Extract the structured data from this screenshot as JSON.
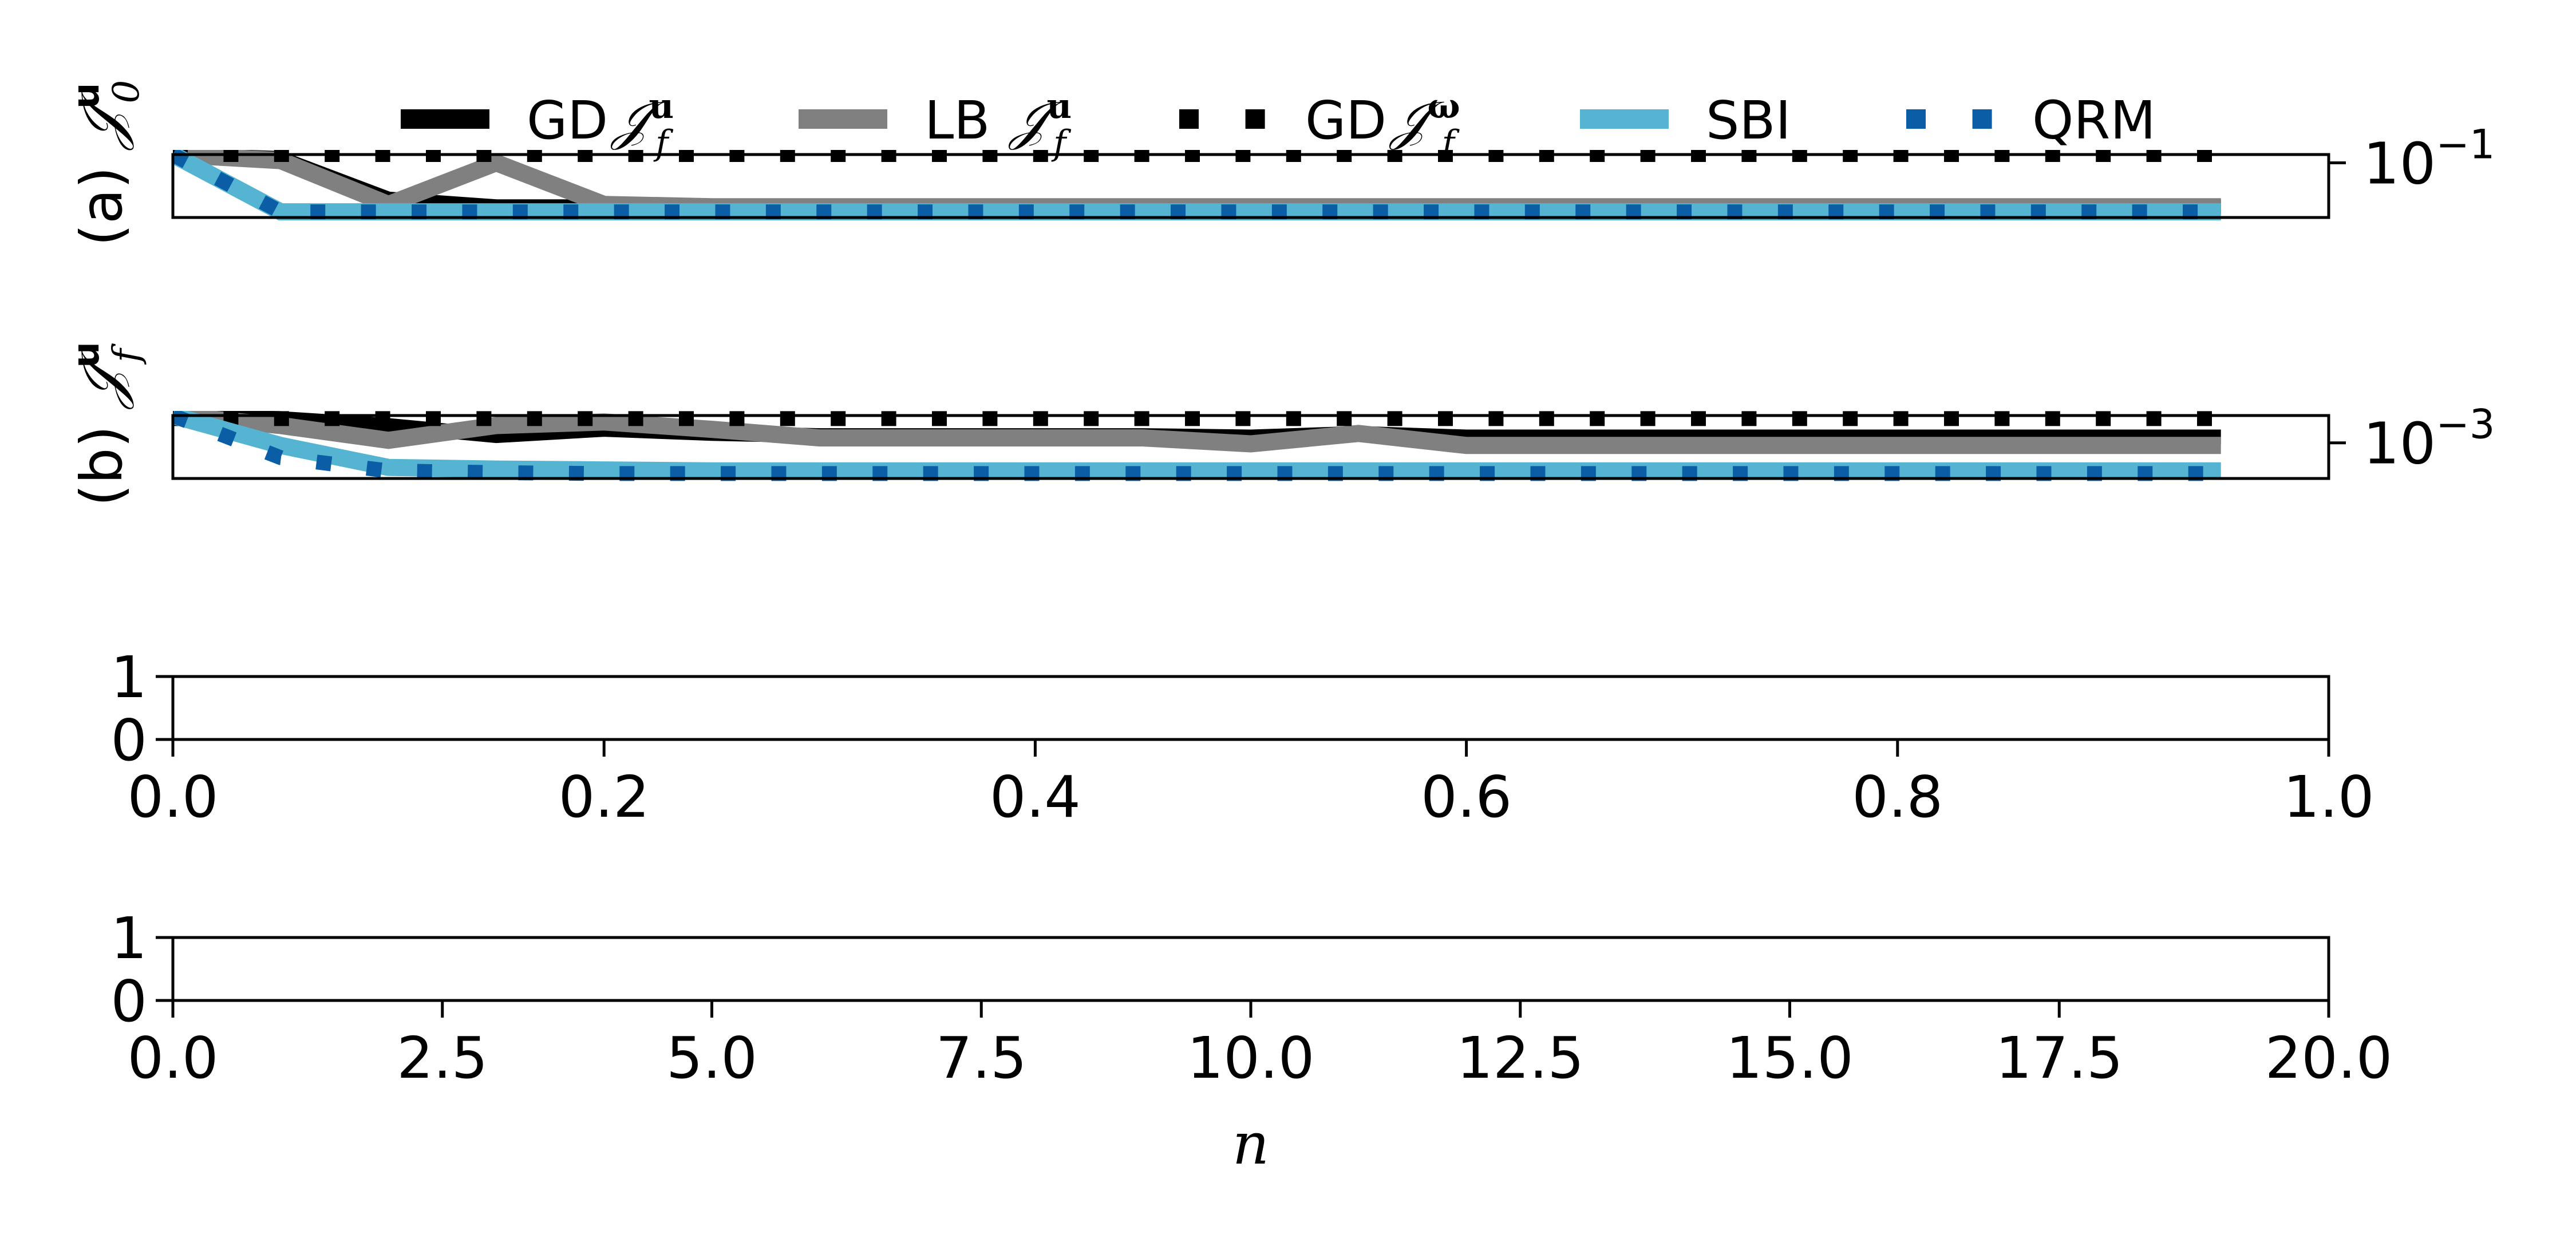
{
  "legend": [
    {
      "id": "gd_u",
      "label": "GD",
      "math": "𝒥",
      "sub": "f",
      "sup": "u",
      "color": "#000000",
      "style": "solid"
    },
    {
      "id": "lb_u",
      "label": "LB",
      "math": "𝒥",
      "sub": "f",
      "sup": "u",
      "color": "#808080",
      "style": "solid"
    },
    {
      "id": "gd_w",
      "label": "GD",
      "math": "𝒥",
      "sub": "f",
      "sup": "ω",
      "color": "#000000",
      "style": "dotted"
    },
    {
      "id": "sbi",
      "label": "SBI",
      "math": "",
      "sub": "",
      "sup": "",
      "color": "#56b4d3",
      "style": "solid"
    },
    {
      "id": "qrm",
      "label": "QRM",
      "math": "",
      "sub": "",
      "sup": "",
      "color": "#0b5ea6",
      "style": "dotted"
    }
  ],
  "chart_data": [
    {
      "type": "line",
      "panel": "a",
      "ylabel_prefix": "(a)",
      "ylabel_math": "𝒥",
      "ylabel_sub": "0",
      "ylabel_sup": "u",
      "yscale": "log",
      "ylim": [
        0.03,
        0.12
      ],
      "xlim": [
        0,
        1.0
      ],
      "right_tick": {
        "base": "10",
        "exp": "−1",
        "value": 0.1
      },
      "x": [
        0,
        0.05,
        0.1,
        0.15,
        0.2,
        0.25,
        0.3,
        0.35,
        0.4,
        0.45,
        0.5,
        0.55,
        0.6,
        0.65,
        0.7,
        0.75,
        0.8,
        0.85,
        0.9,
        0.95
      ],
      "series": [
        {
          "ref": "gd_u",
          "values": [
            0.12,
            0.11,
            0.045,
            0.038,
            0.038,
            0.038,
            0.038,
            0.038,
            0.038,
            0.038,
            0.038,
            0.038,
            0.038,
            0.038,
            0.038,
            0.038,
            0.038,
            0.038,
            0.038,
            0.038
          ]
        },
        {
          "ref": "lb_u",
          "values": [
            0.12,
            0.105,
            0.04,
            0.1,
            0.04,
            0.038,
            0.038,
            0.038,
            0.038,
            0.038,
            0.038,
            0.038,
            0.038,
            0.038,
            0.038,
            0.038,
            0.038,
            0.038,
            0.038,
            0.038
          ]
        },
        {
          "ref": "gd_w",
          "values": [
            0.12,
            0.12,
            0.12,
            0.12,
            0.12,
            0.12,
            0.12,
            0.12,
            0.12,
            0.12,
            0.12,
            0.12,
            0.12,
            0.12,
            0.12,
            0.12,
            0.12,
            0.12,
            0.12,
            0.12
          ]
        },
        {
          "ref": "sbi",
          "values": [
            0.12,
            0.034,
            0.034,
            0.034,
            0.034,
            0.034,
            0.034,
            0.034,
            0.034,
            0.034,
            0.034,
            0.034,
            0.034,
            0.034,
            0.034,
            0.034,
            0.034,
            0.034,
            0.034,
            0.034
          ]
        },
        {
          "ref": "qrm",
          "values": [
            0.12,
            0.034,
            0.034,
            0.034,
            0.034,
            0.034,
            0.034,
            0.034,
            0.034,
            0.034,
            0.034,
            0.034,
            0.034,
            0.034,
            0.034,
            0.034,
            0.034,
            0.034,
            0.034,
            0.034
          ]
        }
      ]
    },
    {
      "type": "line",
      "panel": "b",
      "ylabel_prefix": "(b)",
      "ylabel_math": "𝒥",
      "ylabel_sub": "f",
      "ylabel_sup": "u",
      "yscale": "log",
      "ylim": [
        0.0005,
        0.0017
      ],
      "xlim": [
        0,
        1.0
      ],
      "right_tick": {
        "base": "10",
        "exp": "−3",
        "value": 0.001
      },
      "x": [
        0,
        0.05,
        0.1,
        0.15,
        0.2,
        0.25,
        0.3,
        0.35,
        0.4,
        0.45,
        0.5,
        0.55,
        0.6,
        0.65,
        0.7,
        0.75,
        0.8,
        0.85,
        0.9,
        0.95
      ],
      "series": [
        {
          "ref": "gd_u",
          "values": [
            0.0017,
            0.0016,
            0.0014,
            0.00115,
            0.0013,
            0.0012,
            0.00115,
            0.00115,
            0.00115,
            0.00115,
            0.00112,
            0.0012,
            0.00112,
            0.00112,
            0.00112,
            0.00112,
            0.00112,
            0.00112,
            0.00112,
            0.00112
          ]
        },
        {
          "ref": "lb_u",
          "values": [
            0.0017,
            0.0014,
            0.00105,
            0.0014,
            0.0015,
            0.0013,
            0.0011,
            0.0011,
            0.0011,
            0.0011,
            0.00098,
            0.0012,
            0.00095,
            0.00095,
            0.00095,
            0.00095,
            0.00095,
            0.00095,
            0.00095,
            0.00095
          ]
        },
        {
          "ref": "gd_w",
          "values": [
            0.0016,
            0.0016,
            0.0016,
            0.0016,
            0.0016,
            0.0016,
            0.0016,
            0.0016,
            0.0016,
            0.0016,
            0.0016,
            0.0016,
            0.0016,
            0.0016,
            0.0016,
            0.0016,
            0.0016,
            0.0016,
            0.0016,
            0.0016
          ]
        },
        {
          "ref": "sbi",
          "values": [
            0.0017,
            0.00095,
            0.00062,
            0.0006,
            0.00059,
            0.00058,
            0.00058,
            0.00058,
            0.00058,
            0.00058,
            0.00058,
            0.00058,
            0.00058,
            0.00058,
            0.00058,
            0.00058,
            0.00058,
            0.00058,
            0.00058,
            0.00058
          ]
        },
        {
          "ref": "qrm",
          "values": [
            0.0017,
            0.00075,
            0.00058,
            0.00056,
            0.00055,
            0.00055,
            0.00055,
            0.00055,
            0.00055,
            0.00055,
            0.00055,
            0.00055,
            0.00055,
            0.00055,
            0.00055,
            0.00055,
            0.00055,
            0.00055,
            0.00055,
            0.00055
          ]
        }
      ]
    },
    {
      "type": "line",
      "panel": "c",
      "xlim": [
        0,
        1.0
      ],
      "ylim": [
        0,
        1
      ],
      "xticks": [
        "0.0",
        "0.2",
        "0.4",
        "0.6",
        "0.8",
        "1.0"
      ],
      "yticks": [
        "0",
        "1"
      ],
      "series": []
    },
    {
      "type": "line",
      "panel": "d",
      "xlim": [
        0,
        20
      ],
      "ylim": [
        0,
        1
      ],
      "xticks": [
        "0.0",
        "2.5",
        "5.0",
        "7.5",
        "10.0",
        "12.5",
        "15.0",
        "17.5",
        "20.0"
      ],
      "yticks": [
        "0",
        "1"
      ],
      "xlabel": "n",
      "series": []
    }
  ]
}
